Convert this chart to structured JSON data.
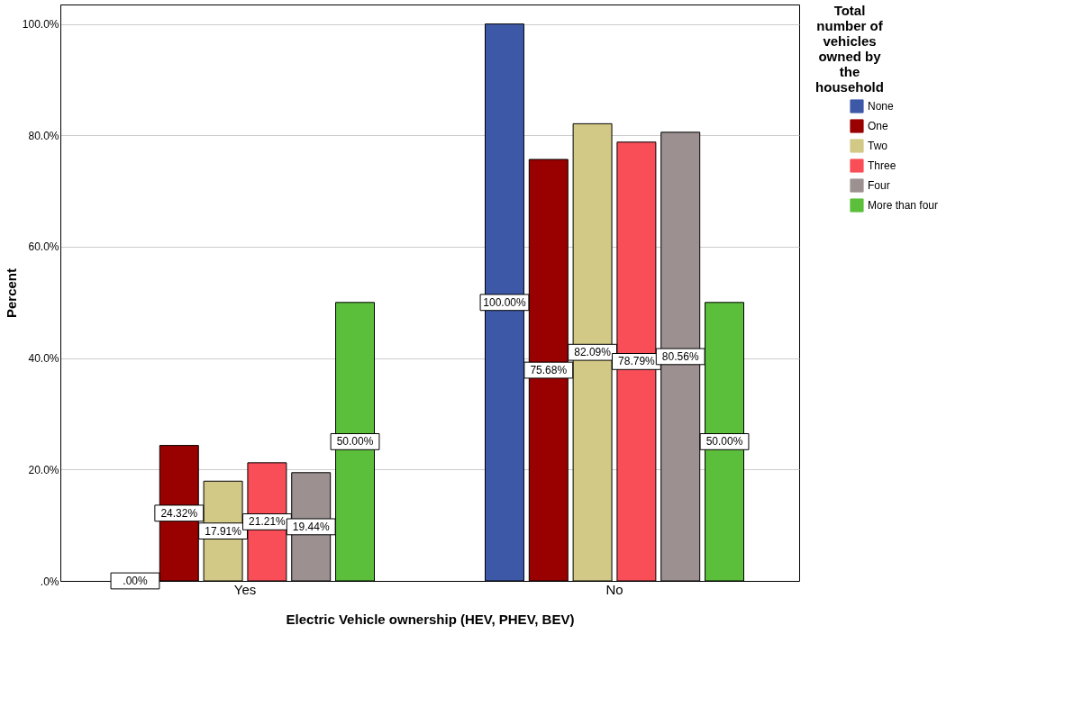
{
  "chart_data": {
    "type": "bar",
    "xlabel": "Electric Vehicle ownership (HEV, PHEV, BEV)",
    "ylabel": "Percent",
    "legend_title": "Total number of vehicles owned by the household",
    "categories": [
      "Yes",
      "No"
    ],
    "series": [
      {
        "name": "None",
        "color": "#3e58a8",
        "values": [
          0,
          100
        ],
        "value_labels": [
          ".00%",
          "100.00%"
        ]
      },
      {
        "name": "One",
        "color": "#990000",
        "values": [
          24.32,
          75.68
        ],
        "value_labels": [
          "24.32%",
          "75.68%"
        ]
      },
      {
        "name": "Two",
        "color": "#d2c986",
        "values": [
          17.91,
          82.09
        ],
        "value_labels": [
          "17.91%",
          "82.09%"
        ]
      },
      {
        "name": "Three",
        "color": "#f94e58",
        "values": [
          21.21,
          78.79
        ],
        "value_labels": [
          "21.21%",
          "78.79%"
        ]
      },
      {
        "name": "Four",
        "color": "#9c9090",
        "values": [
          19.44,
          80.56
        ],
        "value_labels": [
          "19.44%",
          "80.56%"
        ]
      },
      {
        "name": "More than four",
        "color": "#5cbf3c",
        "values": [
          50,
          50
        ],
        "value_labels": [
          "50.00%",
          "50.00%"
        ]
      }
    ],
    "ylim": [
      0,
      103.5
    ],
    "yticks": [
      {
        "value": 0,
        "label": ".0%"
      },
      {
        "value": 20,
        "label": "20.0%"
      },
      {
        "value": 40,
        "label": "40.0%"
      },
      {
        "value": 60,
        "label": "60.0%"
      },
      {
        "value": 80,
        "label": "80.0%"
      },
      {
        "value": 100,
        "label": "100.0%"
      }
    ],
    "grid": "y",
    "legend": "top right"
  }
}
